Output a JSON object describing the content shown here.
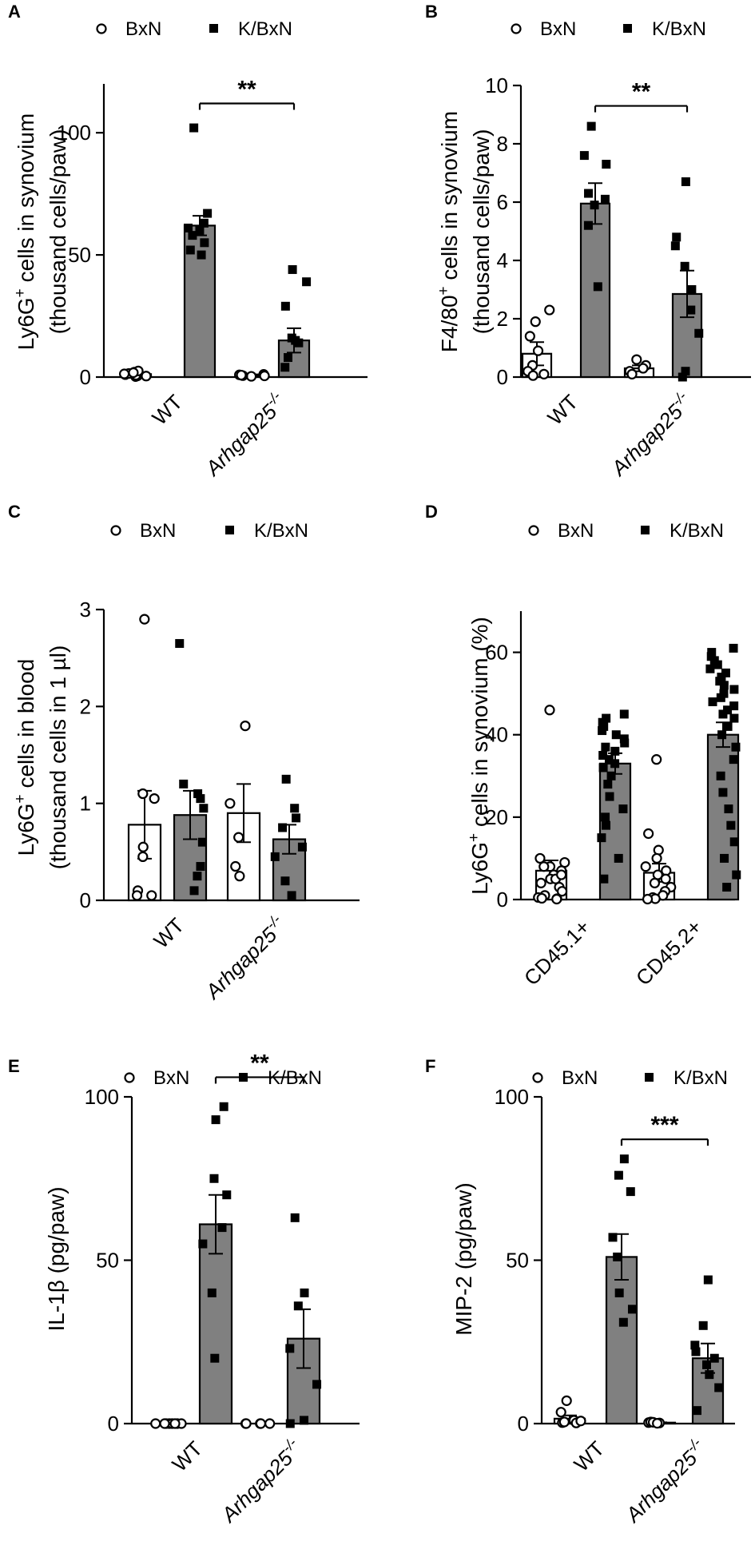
{
  "chart_data": [
    {
      "panel": "A",
      "type": "bar",
      "ylabel_prefix": "Ly6G",
      "ylabel_sup": "+",
      "ylabel_suffix": " cells in synovium",
      "ylabel_line2": "(thousand cells/paw)",
      "ylim": [
        0,
        120
      ],
      "ticks": [
        0,
        50,
        100
      ],
      "legend": [
        "BxN",
        "K/BxN"
      ],
      "groups": [
        {
          "label": "WT",
          "italic": false,
          "sup": ""
        },
        {
          "label": "Arhgap25",
          "italic": true,
          "sup": "-/-"
        }
      ],
      "bars": [
        {
          "series": "BxN",
          "group": 0,
          "mean": 1.2,
          "sem": 0.5,
          "points": [
            0.2,
            0.5,
            1.0,
            1.5,
            2.0,
            0.8,
            1.3,
            0.4,
            2.5,
            1.8
          ]
        },
        {
          "series": "K/BxN",
          "group": 0,
          "mean": 62,
          "sem": 4,
          "points": [
            102,
            67,
            63,
            61,
            60,
            58,
            55,
            52,
            50
          ]
        },
        {
          "series": "BxN",
          "group": 1,
          "mean": 0.8,
          "sem": 0.3,
          "points": [
            0.3,
            0.6,
            0.9,
            1.1,
            0.5,
            0.8
          ]
        },
        {
          "series": "K/BxN",
          "group": 1,
          "mean": 15,
          "sem": 5,
          "points": [
            44,
            39,
            29,
            16,
            15,
            14,
            8,
            4
          ]
        }
      ],
      "significance": [
        {
          "from": 0,
          "to": 1,
          "label": "**",
          "y": 112
        }
      ]
    },
    {
      "panel": "B",
      "type": "bar",
      "ylabel_prefix": "F4/80",
      "ylabel_sup": "+",
      "ylabel_suffix": " cells in synovium",
      "ylabel_line2": "(thousand cells/paw)",
      "ylim": [
        0,
        10
      ],
      "ticks": [
        0,
        2,
        4,
        6,
        8,
        10
      ],
      "legend": [
        "BxN",
        "K/BxN"
      ],
      "groups": [
        {
          "label": "WT",
          "italic": false,
          "sup": ""
        },
        {
          "label": "Arhgap25",
          "italic": true,
          "sup": "-/-"
        }
      ],
      "bars": [
        {
          "series": "BxN",
          "group": 0,
          "mean": 0.8,
          "sem": 0.4,
          "points": [
            2.3,
            1.9,
            1.4,
            0.9,
            0.4,
            0.2,
            0.1,
            0.05
          ]
        },
        {
          "series": "K/BxN",
          "group": 0,
          "mean": 5.95,
          "sem": 0.7,
          "points": [
            8.6,
            7.6,
            7.3,
            6.3,
            6.1,
            5.9,
            5.2,
            3.1
          ]
        },
        {
          "series": "BxN",
          "group": 1,
          "mean": 0.3,
          "sem": 0.1,
          "points": [
            0.6,
            0.4,
            0.3,
            0.2,
            0.1
          ]
        },
        {
          "series": "K/BxN",
          "group": 1,
          "mean": 2.85,
          "sem": 0.8,
          "points": [
            6.7,
            4.8,
            4.5,
            3.8,
            3.0,
            2.3,
            1.5,
            0.0,
            0.2
          ]
        }
      ],
      "significance": [
        {
          "from": 0,
          "to": 1,
          "label": "**",
          "y": 9.3
        }
      ]
    },
    {
      "panel": "C",
      "type": "bar",
      "ylabel_prefix": "Ly6G",
      "ylabel_sup": "+",
      "ylabel_suffix": " cells in blood",
      "ylabel_line2": "(thousand cells in 1 µl)",
      "ylim": [
        0,
        3
      ],
      "ticks": [
        0,
        1,
        2,
        3
      ],
      "legend": [
        "BxN",
        "K/BxN"
      ],
      "groups": [
        {
          "label": "WT",
          "italic": false,
          "sup": ""
        },
        {
          "label": "Arhgap25",
          "italic": true,
          "sup": "-/-"
        }
      ],
      "bars": [
        {
          "series": "BxN",
          "group": 0,
          "mean": 0.78,
          "sem": 0.35,
          "points": [
            2.9,
            1.1,
            1.05,
            0.55,
            0.45,
            0.1,
            0.05,
            0.05
          ]
        },
        {
          "series": "K/BxN",
          "group": 0,
          "mean": 0.88,
          "sem": 0.25,
          "points": [
            2.65,
            1.2,
            1.1,
            1.05,
            0.95,
            0.6,
            0.35,
            0.25,
            0.1
          ]
        },
        {
          "series": "BxN",
          "group": 1,
          "mean": 0.9,
          "sem": 0.3,
          "points": [
            1.8,
            1.0,
            0.65,
            0.25,
            0.35
          ]
        },
        {
          "series": "K/BxN",
          "group": 1,
          "mean": 0.63,
          "sem": 0.15,
          "points": [
            1.25,
            0.95,
            0.85,
            0.75,
            0.55,
            0.45,
            0.2,
            0.05
          ]
        }
      ],
      "significance": []
    },
    {
      "panel": "D",
      "type": "bar",
      "ylabel_prefix": "Ly6G",
      "ylabel_sup": "+",
      "ylabel_suffix": " cells in synovium (%)",
      "ylabel_line2": "",
      "ylim": [
        0,
        70
      ],
      "ticks": [
        0,
        20,
        40,
        60
      ],
      "legend": [
        "BxN",
        "K/BxN"
      ],
      "groups": [
        {
          "label": "CD45.1+",
          "italic": false,
          "sup": ""
        },
        {
          "label": "CD45.2+",
          "italic": false,
          "sup": ""
        }
      ],
      "bars": [
        {
          "series": "BxN",
          "group": 0,
          "mean": 7,
          "sem": 2.5,
          "points": [
            46,
            10,
            9,
            8,
            7,
            6,
            5,
            4,
            3,
            2,
            1,
            0.5,
            0.3,
            0.2,
            0.1,
            5,
            6,
            8
          ]
        },
        {
          "series": "K/BxN",
          "group": 0,
          "mean": 33,
          "sem": 2.5,
          "points": [
            45,
            44,
            43,
            42,
            41,
            40,
            39,
            38,
            37,
            36,
            35,
            34,
            33,
            32,
            30,
            28,
            25,
            22,
            20,
            18,
            15,
            10,
            5
          ]
        },
        {
          "series": "BxN",
          "group": 1,
          "mean": 6.5,
          "sem": 2.2,
          "points": [
            34,
            16,
            12,
            10,
            8,
            7,
            6,
            5,
            4,
            3,
            2,
            1,
            0.5,
            0.2,
            0.1
          ]
        },
        {
          "series": "K/BxN",
          "group": 1,
          "mean": 40,
          "sem": 3,
          "points": [
            61,
            60,
            59,
            58,
            57,
            56,
            55,
            54,
            53,
            52,
            51,
            50,
            49,
            48,
            47,
            46,
            45,
            44,
            42,
            40,
            37,
            34,
            30,
            26,
            22,
            18,
            14,
            10,
            6,
            3
          ]
        }
      ],
      "significance": []
    },
    {
      "panel": "E",
      "type": "bar",
      "ylabel_prefix": "IL-1β (pg/paw)",
      "ylabel_sup": "",
      "ylabel_suffix": "",
      "ylabel_line2": "",
      "ylim": [
        0,
        100
      ],
      "ticks": [
        0,
        50,
        100
      ],
      "legend": [
        "BxN",
        "K/BxN"
      ],
      "groups": [
        {
          "label": "WT",
          "italic": false,
          "sup": ""
        },
        {
          "label": "Arhgap25",
          "italic": true,
          "sup": "-/-"
        }
      ],
      "bars": [
        {
          "series": "BxN",
          "group": 0,
          "mean": 0,
          "sem": 0,
          "points": [
            0,
            0,
            0,
            0,
            0,
            0,
            0,
            0
          ]
        },
        {
          "series": "K/BxN",
          "group": 0,
          "mean": 61,
          "sem": 9,
          "points": [
            97,
            93,
            75,
            70,
            60,
            55,
            40,
            20
          ]
        },
        {
          "series": "BxN",
          "group": 1,
          "mean": 0,
          "sem": 0,
          "points": [
            0,
            0,
            0,
            0,
            0
          ]
        },
        {
          "series": "K/BxN",
          "group": 1,
          "mean": 26,
          "sem": 9,
          "points": [
            63,
            40,
            36,
            23,
            12,
            1,
            0
          ]
        }
      ],
      "significance": [
        {
          "from": 0,
          "to": 1,
          "label": "**",
          "y": 106
        }
      ]
    },
    {
      "panel": "F",
      "type": "bar",
      "ylabel_prefix": "MIP-2 (pg/paw)",
      "ylabel_sup": "",
      "ylabel_suffix": "",
      "ylabel_line2": "",
      "ylim": [
        0,
        100
      ],
      "ticks": [
        0,
        50,
        100
      ],
      "legend": [
        "BxN",
        "K/BxN"
      ],
      "groups": [
        {
          "label": "WT",
          "italic": false,
          "sup": ""
        },
        {
          "label": "Arhgap25",
          "italic": true,
          "sup": "-/-"
        }
      ],
      "bars": [
        {
          "series": "BxN",
          "group": 0,
          "mean": 1.5,
          "sem": 1,
          "points": [
            7,
            3.5,
            1,
            0.3,
            0.2,
            0.5,
            0.8
          ]
        },
        {
          "series": "K/BxN",
          "group": 0,
          "mean": 51,
          "sem": 7,
          "points": [
            81,
            76,
            71,
            57,
            51,
            40,
            35,
            31
          ]
        },
        {
          "series": "BxN",
          "group": 1,
          "mean": 0.3,
          "sem": 0.1,
          "points": [
            0.3,
            0.5,
            0.2,
            0.4,
            0.1
          ]
        },
        {
          "series": "K/BxN",
          "group": 1,
          "mean": 20,
          "sem": 4.5,
          "points": [
            44,
            30,
            24,
            22,
            20,
            18,
            15,
            11,
            4
          ]
        }
      ],
      "significance": [
        {
          "from": 0,
          "to": 1,
          "label": "***",
          "y": 87
        }
      ]
    }
  ]
}
